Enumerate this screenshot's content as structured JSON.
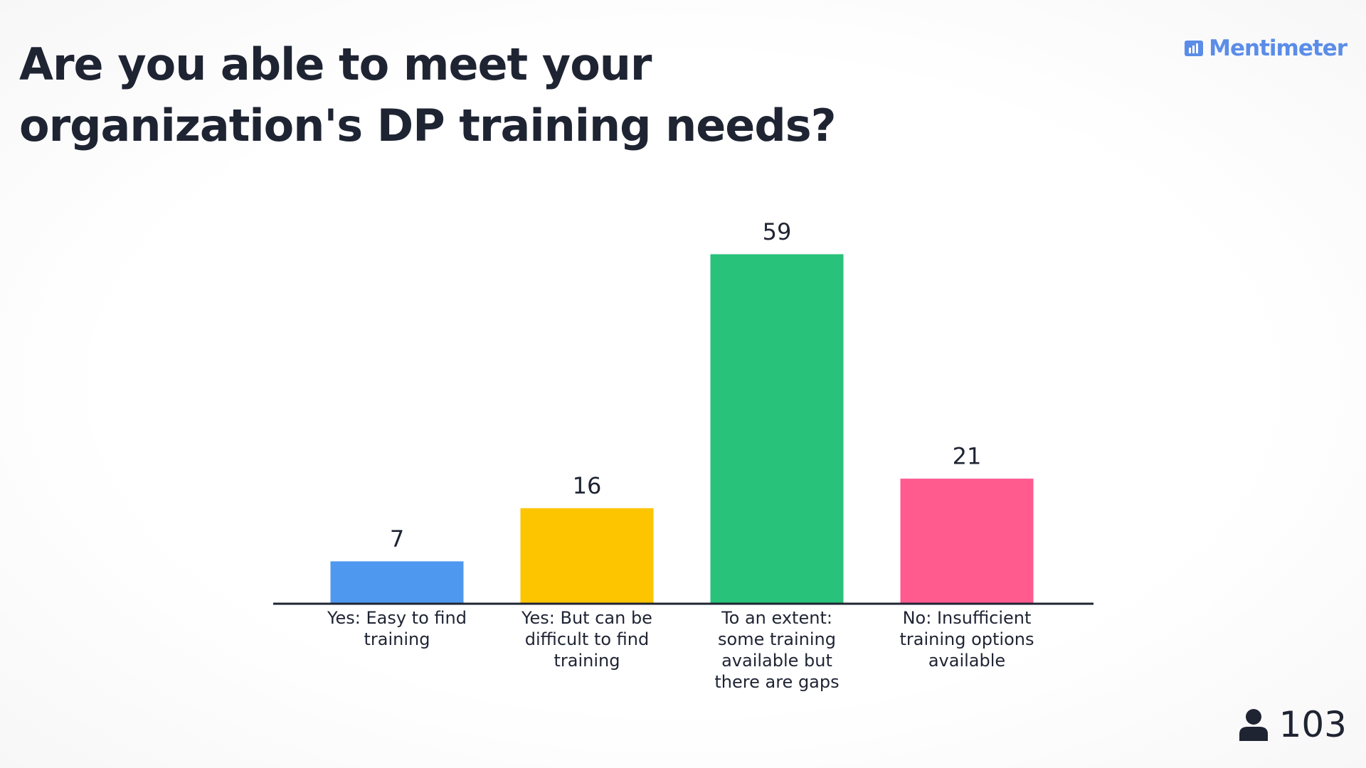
{
  "brand": "Mentimeter",
  "respondents": 103,
  "chart_data": {
    "type": "bar",
    "title": "Are you able to meet your organization's DP training needs?",
    "categories": [
      "Yes: Easy to find training",
      "Yes: But can be difficult to find training",
      "To an extent: some training available but there are gaps",
      "No: Insufficient training options available"
    ],
    "values": [
      7,
      16,
      59,
      21
    ],
    "colors": [
      "#4f98ef",
      "#fdc400",
      "#28c27a",
      "#ff5b8f"
    ]
  }
}
